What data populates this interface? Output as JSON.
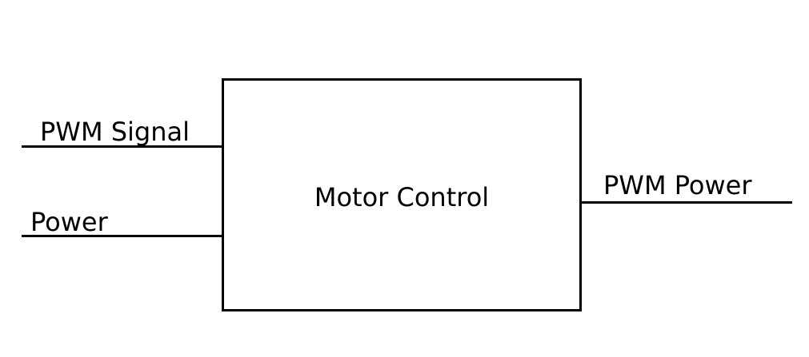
{
  "block": {
    "label": "Motor Control"
  },
  "inputs": [
    {
      "label": "PWM Signal"
    },
    {
      "label": "Power"
    }
  ],
  "outputs": [
    {
      "label": "PWM Power"
    }
  ],
  "colors": {
    "stroke": "#000000",
    "background": "#ffffff"
  }
}
